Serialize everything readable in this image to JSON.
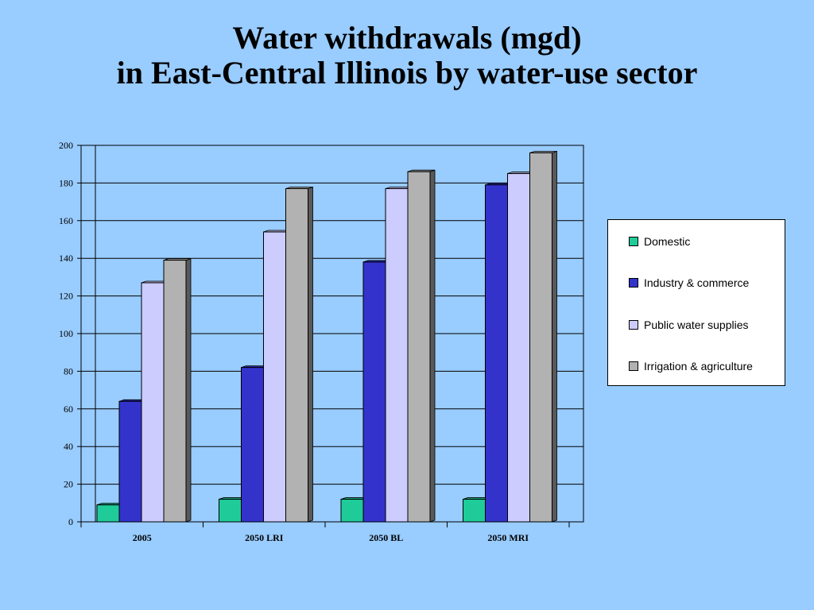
{
  "title": {
    "line1": "Water withdrawals (mgd)",
    "line2": "in East-Central Illinois by water-use sector"
  },
  "chart_data": {
    "type": "bar",
    "categories": [
      "2005",
      "2050 LRI",
      "2050 BL",
      "2050 MRI"
    ],
    "series": [
      {
        "name": "Domestic",
        "color": "#1fcc99",
        "values": [
          9,
          12,
          12,
          12
        ]
      },
      {
        "name": "Industry & commerce",
        "color": "#3333cc",
        "values": [
          64,
          82,
          138,
          179
        ]
      },
      {
        "name": "Public water supplies",
        "color": "#ccccff",
        "values": [
          127,
          154,
          177,
          185
        ]
      },
      {
        "name": "Irrigation & agriculture",
        "color": "#b2b2b2",
        "values": [
          139,
          177,
          186,
          196
        ]
      }
    ],
    "ylim": [
      0,
      200
    ],
    "yticks": [
      "0",
      "20",
      "40",
      "60",
      "80",
      "100",
      "120",
      "140",
      "160",
      "180",
      "200"
    ],
    "grid": true,
    "three_d": true,
    "legend_position": "right"
  }
}
